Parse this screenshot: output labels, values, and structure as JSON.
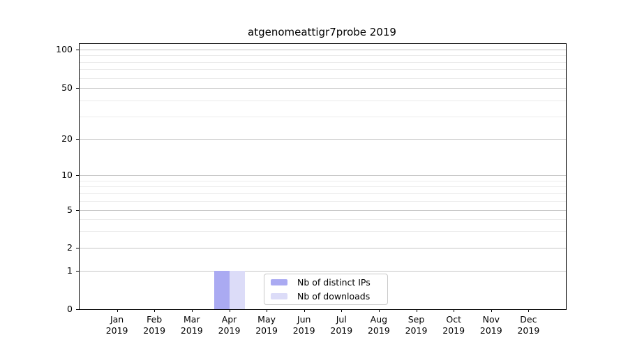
{
  "figure": {
    "background": "#ffffff"
  },
  "chart_data": {
    "type": "bar",
    "title": "atgenomeattigr7probe 2019",
    "categories": [
      "Jan 2019",
      "Feb 2019",
      "Mar 2019",
      "Apr 2019",
      "May 2019",
      "Jun 2019",
      "Jul 2019",
      "Aug 2019",
      "Sep 2019",
      "Oct 2019",
      "Nov 2019",
      "Dec 2019"
    ],
    "x_tick_labels": [
      [
        "Jan",
        "2019"
      ],
      [
        "Feb",
        "2019"
      ],
      [
        "Mar",
        "2019"
      ],
      [
        "Apr",
        "2019"
      ],
      [
        "May",
        "2019"
      ],
      [
        "Jun",
        "2019"
      ],
      [
        "Jul",
        "2019"
      ],
      [
        "Aug",
        "2019"
      ],
      [
        "Sep",
        "2019"
      ],
      [
        "Oct",
        "2019"
      ],
      [
        "Nov",
        "2019"
      ],
      [
        "Dec",
        "2019"
      ]
    ],
    "series": [
      {
        "name": "Nb of distinct IPs",
        "color": "#aaaaf2",
        "values": [
          0,
          0,
          0,
          1,
          0,
          0,
          0,
          0,
          0,
          0,
          0,
          0
        ]
      },
      {
        "name": "Nb of downloads",
        "color": "#dcdcf8",
        "values": [
          0,
          0,
          0,
          1,
          0,
          0,
          0,
          0,
          0,
          0,
          0,
          0
        ]
      }
    ],
    "xlabel": "",
    "ylabel": "",
    "y_axis": {
      "ticks": [
        100,
        50,
        20,
        10,
        5,
        2,
        1,
        0
      ],
      "minor_gridlines": [
        3,
        4,
        6,
        7,
        8,
        9,
        30,
        40,
        60,
        70,
        80,
        90
      ],
      "scale": "log-like",
      "range": [
        0,
        110
      ]
    },
    "grid": "horizontal",
    "legend_position": "lower center",
    "colors": {
      "major_gridline": "#c6c6c6",
      "minor_gridline": "#ebebeb",
      "axis_spine": "#000000",
      "legend_border": "#c9c9c9",
      "text": "#000000"
    }
  }
}
